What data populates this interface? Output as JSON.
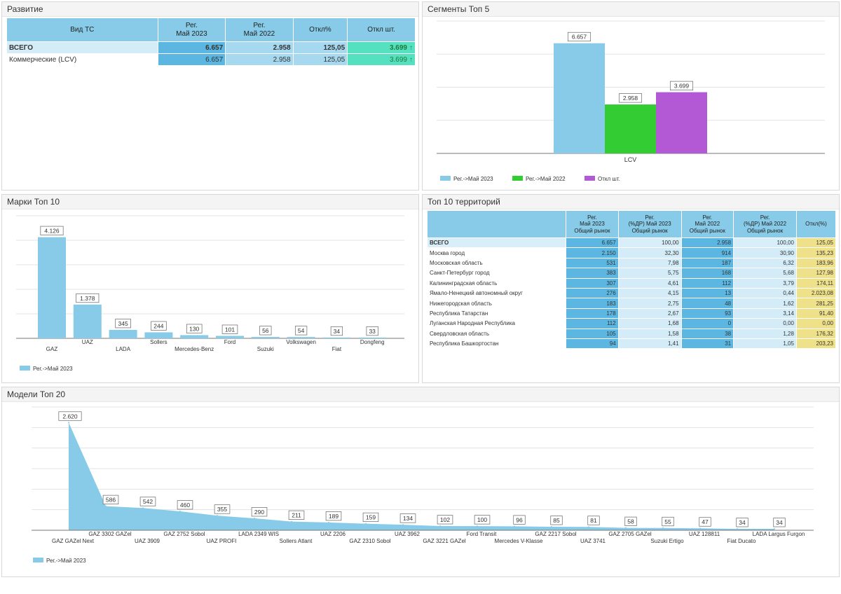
{
  "colors": {
    "reg2023": "#87cbe8",
    "reg2022": "#33cc33",
    "diff": "#b459d6",
    "grid": "#e0e0e0"
  },
  "dev": {
    "title": "Развитие",
    "headers": [
      "Вид ТС",
      "Рег.\nМай 2023",
      "Рег.\nМай 2022",
      "Откл%",
      "Откл шт."
    ],
    "rows": [
      {
        "name": "ВСЕГО",
        "reg2023": "6.657",
        "reg2022": "2.958",
        "pct": "125,05",
        "diff": "3.699"
      },
      {
        "name": "Коммерческие (LCV)",
        "reg2023": "6.657",
        "reg2022": "2.958",
        "pct": "125,05",
        "diff": "3.699"
      }
    ]
  },
  "segments": {
    "title": "Сегменты Топ 5",
    "chart_data": {
      "type": "bar",
      "categories": [
        "LCV"
      ],
      "series": [
        {
          "name": "Рег.->Май 2023",
          "values": [
            6657
          ],
          "label": "6.657"
        },
        {
          "name": "Рег.->Май 2022",
          "values": [
            2958
          ],
          "label": "2.958"
        },
        {
          "name": "Откл шт.",
          "values": [
            3699
          ],
          "label": "3.699"
        }
      ],
      "ylim": [
        0,
        8000
      ],
      "legend": "bottom-left",
      "grid": true
    }
  },
  "brands": {
    "title": "Марки Топ 10",
    "chart_data": {
      "type": "bar",
      "categories": [
        "GAZ",
        "UAZ",
        "LADA",
        "Sollers",
        "Mercedes-Benz",
        "Ford",
        "Suzuki",
        "Volkswagen",
        "Fiat",
        "Dongfeng"
      ],
      "series": [
        {
          "name": "Рег.->Май 2023",
          "values": [
            4126,
            1378,
            345,
            244,
            130,
            101,
            56,
            54,
            34,
            33
          ],
          "labels": [
            "4.126",
            "1.378",
            "345",
            "244",
            "130",
            "101",
            "56",
            "54",
            "34",
            "33"
          ]
        }
      ],
      "ylim": [
        0,
        5000
      ],
      "legend": "bottom-left",
      "grid": true
    }
  },
  "territories": {
    "title": "Топ 10 территорий",
    "headers": [
      "",
      "Рег.\nМай 2023\nОбщий рынок",
      "Рег.\n(%ДР) Май 2023\nОбщий рынок",
      "Рег.\nМай 2022\nОбщий рынок",
      "Рег.\n(%ДР) Май 2022\nОбщий рынок",
      "Откл(%)"
    ],
    "rows": [
      [
        "ВСЕГО",
        "6.657",
        "100,00",
        "2.958",
        "100,00",
        "125,05"
      ],
      [
        "Москва город",
        "2.150",
        "32,30",
        "914",
        "30,90",
        "135,23"
      ],
      [
        "Московская область",
        "531",
        "7,98",
        "187",
        "6,32",
        "183,96"
      ],
      [
        "Санкт-Петербург город",
        "383",
        "5,75",
        "168",
        "5,68",
        "127,98"
      ],
      [
        "Калининградская область",
        "307",
        "4,61",
        "112",
        "3,79",
        "174,11"
      ],
      [
        "Ямало-Ненецкий автономный округ",
        "276",
        "4,15",
        "13",
        "0,44",
        "2.023,08"
      ],
      [
        "Нижегородская область",
        "183",
        "2,75",
        "48",
        "1,62",
        "281,25"
      ],
      [
        "Республика Татарстан",
        "178",
        "2,67",
        "93",
        "3,14",
        "91,40"
      ],
      [
        "Луганская Народная Республика",
        "112",
        "1,68",
        "0",
        "0,00",
        "0,00"
      ],
      [
        "Свердловская область",
        "105",
        "1,58",
        "38",
        "1,28",
        "176,32"
      ],
      [
        "Республика Башкортостан",
        "94",
        "1,41",
        "31",
        "1,05",
        "203,23"
      ]
    ]
  },
  "models": {
    "title": "Модели Топ 20",
    "chart_data": {
      "type": "area",
      "categories": [
        "GAZ GAZel Next",
        "GAZ 3302 GAZel",
        "UAZ 3909",
        "GAZ 2752 Sobol",
        "UAZ PROFI",
        "LADA 2349 WIS",
        "Sollers Atlant",
        "UAZ 2206",
        "GAZ 2310 Sobol",
        "UAZ 3962",
        "GAZ 3221 GAZel",
        "Ford Transit",
        "Mercedes V-Klasse",
        "GAZ 2217 Sobol",
        "UAZ 3741",
        "GAZ 2705 GAZel",
        "Suzuki Ertigo",
        "UAZ 128811",
        "Fiat Ducato",
        "LADA Largus Furgon"
      ],
      "series": [
        {
          "name": "Рег.->Май 2023",
          "values": [
            2620,
            586,
            542,
            460,
            355,
            290,
            211,
            189,
            159,
            134,
            102,
            100,
            96,
            85,
            81,
            58,
            55,
            47,
            34,
            34
          ],
          "labels": [
            "2.620",
            "586",
            "542",
            "460",
            "355",
            "290",
            "211",
            "189",
            "159",
            "134",
            "102",
            "100",
            "96",
            "85",
            "81",
            "58",
            "55",
            "47",
            "34",
            "34"
          ]
        }
      ],
      "ylim": [
        0,
        3000
      ],
      "legend": "bottom-left",
      "grid": true
    }
  }
}
